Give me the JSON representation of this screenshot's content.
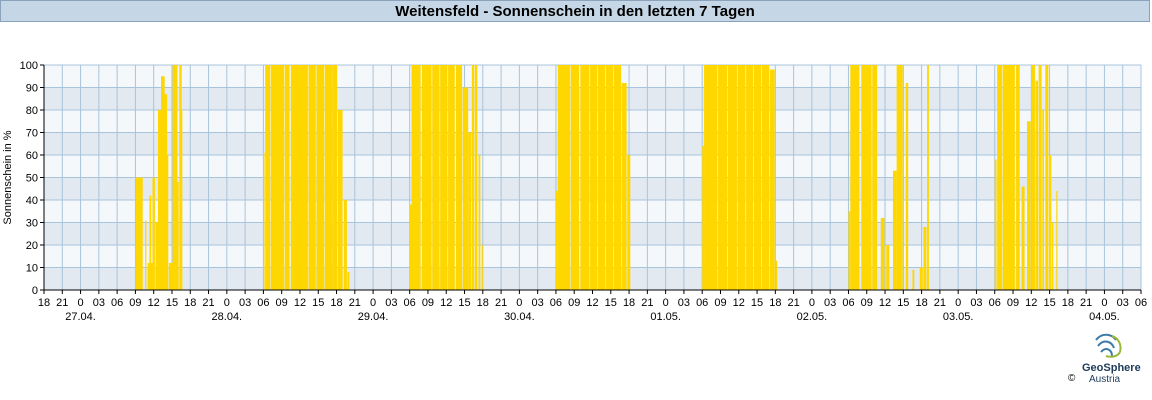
{
  "header": {
    "title": "Weitensfeld - Sonnenschein in den letzten 7 Tagen"
  },
  "colors": {
    "bar": "#ffd700",
    "band": "#e2e9f1",
    "bandAlt": "#f5f8fb",
    "grid": "#a8c4dc",
    "title_bg": "#c5d6e6"
  },
  "footer": {
    "copyright": "©",
    "logo_line1": "GeoSphere",
    "logo_line2": "Austria",
    "logo_icon": "geosphere-logo-icon"
  },
  "chart_data": {
    "type": "bar",
    "title": "Weitensfeld - Sonnenschein in den letzten 7 Tagen",
    "ylabel": "Sonnenschein in %",
    "xlabel": "",
    "ylim": [
      0,
      100
    ],
    "yticks": [
      0,
      10,
      20,
      30,
      40,
      50,
      60,
      70,
      80,
      90,
      100
    ],
    "grid": true,
    "x_hour_ticks": [
      "18",
      "21",
      "0",
      "03",
      "06",
      "09",
      "12",
      "15",
      "18",
      "21",
      "0",
      "03",
      "06",
      "09",
      "12",
      "15",
      "18",
      "21",
      "0",
      "03",
      "06",
      "09",
      "12",
      "15",
      "18",
      "21",
      "0",
      "03",
      "06",
      "09",
      "12",
      "15",
      "18",
      "21",
      "0",
      "03",
      "06",
      "09",
      "12",
      "15",
      "18",
      "21",
      "0",
      "03",
      "06",
      "09",
      "12",
      "15",
      "18",
      "21",
      "0",
      "03",
      "06",
      "09",
      "12",
      "15",
      "18",
      "21",
      "0",
      "03",
      "06"
    ],
    "x_date_labels": [
      "27.04.",
      "28.04.",
      "29.04.",
      "30.04.",
      "01.05.",
      "02.05.",
      "03.05.",
      "04.05."
    ],
    "x_range_hours": [
      -6,
      174
    ],
    "bars": [
      [
        9.0,
        1.0,
        17
      ],
      [
        9.1,
        1.1,
        50
      ],
      [
        10.6,
        0.2,
        31
      ],
      [
        11.0,
        0.8,
        12
      ],
      [
        11.3,
        0.3,
        42
      ],
      [
        11.8,
        0.4,
        50
      ],
      [
        12.3,
        1.0,
        30
      ],
      [
        12.7,
        0.8,
        80
      ],
      [
        13.2,
        0.6,
        95
      ],
      [
        13.7,
        0.5,
        87
      ],
      [
        14.0,
        0.4,
        60
      ],
      [
        14.5,
        1.0,
        12
      ],
      [
        15.1,
        0.8,
        100
      ],
      [
        15.7,
        0.4,
        48
      ],
      [
        16.2,
        0.4,
        100
      ],
      [
        16.5,
        0.2,
        80
      ],
      [
        30.0,
        0.2,
        61
      ],
      [
        30.3,
        0.8,
        100
      ],
      [
        31.2,
        2.2,
        100
      ],
      [
        33.5,
        0.8,
        100
      ],
      [
        34.5,
        1.4,
        100
      ],
      [
        36.0,
        1.3,
        100
      ],
      [
        37.4,
        1.2,
        100
      ],
      [
        38.7,
        1.3,
        100
      ],
      [
        40.1,
        1.2,
        100
      ],
      [
        41.3,
        0.8,
        100
      ],
      [
        42.2,
        0.8,
        80
      ],
      [
        43.2,
        0.5,
        40
      ],
      [
        43.8,
        0.3,
        8
      ],
      [
        54.0,
        0.3,
        38
      ],
      [
        54.3,
        1.5,
        100
      ],
      [
        56.0,
        1.6,
        100
      ],
      [
        57.7,
        1.2,
        100
      ],
      [
        59.0,
        1.2,
        100
      ],
      [
        60.3,
        1.1,
        100
      ],
      [
        61.6,
        1.0,
        100
      ],
      [
        62.7,
        0.9,
        90
      ],
      [
        63.6,
        0.5,
        70
      ],
      [
        64.2,
        0.4,
        100
      ],
      [
        64.7,
        0.4,
        100
      ],
      [
        65.3,
        0.3,
        60
      ],
      [
        65.8,
        0.2,
        20
      ],
      [
        78.0,
        0.3,
        44
      ],
      [
        78.3,
        2.0,
        100
      ],
      [
        80.4,
        1.4,
        100
      ],
      [
        82.0,
        1.5,
        100
      ],
      [
        83.6,
        1.2,
        100
      ],
      [
        84.9,
        1.2,
        100
      ],
      [
        86.2,
        1.2,
        100
      ],
      [
        87.5,
        1.2,
        100
      ],
      [
        88.8,
        0.8,
        92
      ],
      [
        89.7,
        0.5,
        60
      ],
      [
        102.0,
        0.3,
        64
      ],
      [
        102.3,
        2.2,
        100
      ],
      [
        104.6,
        1.5,
        100
      ],
      [
        106.2,
        1.5,
        100
      ],
      [
        107.8,
        1.3,
        100
      ],
      [
        109.2,
        1.2,
        100
      ],
      [
        110.5,
        1.2,
        100
      ],
      [
        111.8,
        1.2,
        100
      ],
      [
        113.1,
        0.8,
        98
      ],
      [
        114.0,
        0.3,
        13
      ],
      [
        126.0,
        0.3,
        35
      ],
      [
        126.3,
        1.5,
        100
      ],
      [
        128.1,
        1.7,
        100
      ],
      [
        129.9,
        0.8,
        100
      ],
      [
        131.3,
        0.6,
        32
      ],
      [
        132.2,
        0.5,
        20
      ],
      [
        133.3,
        0.6,
        53
      ],
      [
        133.9,
        1.0,
        100
      ],
      [
        135.4,
        0.4,
        92
      ],
      [
        136.5,
        0.3,
        9
      ],
      [
        137.7,
        0.5,
        10
      ],
      [
        138.3,
        0.5,
        28
      ],
      [
        138.9,
        0.3,
        100
      ],
      [
        150.0,
        0.3,
        58
      ],
      [
        150.4,
        0.8,
        100
      ],
      [
        151.3,
        2.0,
        100
      ],
      [
        153.5,
        0.6,
        100
      ],
      [
        154.4,
        0.5,
        46
      ],
      [
        155.3,
        0.6,
        75
      ],
      [
        156.0,
        0.6,
        100
      ],
      [
        156.7,
        0.4,
        93
      ],
      [
        157.2,
        0.5,
        100
      ],
      [
        157.8,
        0.3,
        80
      ],
      [
        158.3,
        0.5,
        100
      ],
      [
        158.9,
        0.4,
        60
      ],
      [
        159.4,
        0.2,
        30
      ],
      [
        160.1,
        0.2,
        44
      ]
    ]
  }
}
